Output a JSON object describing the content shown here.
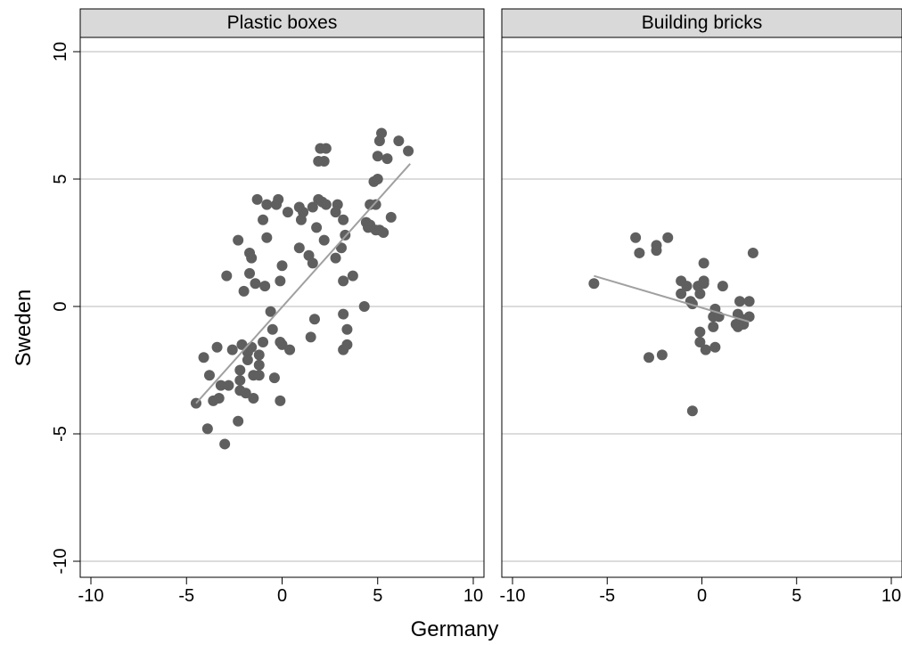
{
  "chart_data": {
    "type": "scatter",
    "xlabel": "Germany",
    "ylabel": "Sweden",
    "xlim": [
      -10,
      10
    ],
    "ylim": [
      -10,
      10
    ],
    "xticks": [
      -10,
      -5,
      0,
      5,
      10
    ],
    "yticks": [
      -10,
      -5,
      0,
      5,
      10
    ],
    "xtick_labels": [
      "-10",
      "-5",
      "0",
      "5",
      "10"
    ],
    "ytick_labels": [
      "-10",
      "-5",
      "0",
      "5",
      "10"
    ],
    "grid": "horizontal",
    "colors": {
      "points": "#5f5f5f",
      "fit_line": "#a0a0a0",
      "strip": "#d9d9d9",
      "grid": "#dcdcdc"
    },
    "panels": [
      {
        "title": "Plastic boxes",
        "fit_line": {
          "x": [
            -4.5,
            6.7
          ],
          "y": [
            -3.8,
            5.6
          ]
        },
        "points": [
          [
            -4.5,
            -3.8
          ],
          [
            -4.1,
            -2.0
          ],
          [
            -3.9,
            -4.8
          ],
          [
            -3.8,
            -2.7
          ],
          [
            -3.6,
            -3.7
          ],
          [
            -3.4,
            -1.6
          ],
          [
            -3.3,
            -3.6
          ],
          [
            -3.2,
            -3.1
          ],
          [
            -3.0,
            -5.4
          ],
          [
            -2.9,
            1.2
          ],
          [
            -2.8,
            -3.1
          ],
          [
            -2.6,
            -1.7
          ],
          [
            -2.3,
            -4.5
          ],
          [
            -2.3,
            2.6
          ],
          [
            -2.2,
            -3.3
          ],
          [
            -2.2,
            -2.9
          ],
          [
            -2.2,
            -2.5
          ],
          [
            -2.1,
            -1.5
          ],
          [
            -2.0,
            0.6
          ],
          [
            -1.9,
            -3.4
          ],
          [
            -1.8,
            -1.8
          ],
          [
            -1.8,
            -2.1
          ],
          [
            -1.7,
            2.1
          ],
          [
            -1.7,
            1.3
          ],
          [
            -1.6,
            1.9
          ],
          [
            -1.6,
            -1.6
          ],
          [
            -1.5,
            -3.6
          ],
          [
            -1.5,
            -2.7
          ],
          [
            -1.4,
            0.9
          ],
          [
            -1.3,
            4.2
          ],
          [
            -1.2,
            -2.7
          ],
          [
            -1.2,
            -2.3
          ],
          [
            -1.2,
            -1.9
          ],
          [
            -1.0,
            3.4
          ],
          [
            -1.0,
            -1.4
          ],
          [
            -0.9,
            0.8
          ],
          [
            -0.8,
            2.7
          ],
          [
            -0.8,
            4.0
          ],
          [
            -0.6,
            -0.2
          ],
          [
            -0.5,
            -0.9
          ],
          [
            -0.4,
            -2.8
          ],
          [
            -0.3,
            4.0
          ],
          [
            -0.2,
            4.2
          ],
          [
            -0.1,
            1.0
          ],
          [
            -0.1,
            -3.7
          ],
          [
            -0.1,
            -1.4
          ],
          [
            0.0,
            1.6
          ],
          [
            0.0,
            -1.5
          ],
          [
            0.3,
            3.7
          ],
          [
            0.4,
            -1.7
          ],
          [
            0.9,
            2.3
          ],
          [
            0.9,
            3.9
          ],
          [
            1.0,
            3.4
          ],
          [
            1.1,
            3.7
          ],
          [
            1.4,
            2.0
          ],
          [
            1.5,
            -1.2
          ],
          [
            1.6,
            3.9
          ],
          [
            1.6,
            1.7
          ],
          [
            1.7,
            -0.5
          ],
          [
            1.8,
            3.1
          ],
          [
            1.9,
            4.2
          ],
          [
            1.9,
            5.7
          ],
          [
            2.0,
            6.2
          ],
          [
            2.1,
            4.1
          ],
          [
            2.2,
            2.6
          ],
          [
            2.2,
            5.7
          ],
          [
            2.3,
            6.2
          ],
          [
            2.3,
            4.0
          ],
          [
            2.8,
            1.9
          ],
          [
            2.8,
            3.7
          ],
          [
            2.9,
            4.0
          ],
          [
            3.1,
            2.3
          ],
          [
            3.2,
            -0.3
          ],
          [
            3.2,
            1.0
          ],
          [
            3.2,
            3.4
          ],
          [
            3.2,
            -1.7
          ],
          [
            3.3,
            2.8
          ],
          [
            3.4,
            -0.9
          ],
          [
            3.4,
            -1.5
          ],
          [
            3.7,
            1.2
          ],
          [
            4.3,
            0.0
          ],
          [
            4.4,
            3.3
          ],
          [
            4.5,
            3.1
          ],
          [
            4.6,
            3.2
          ],
          [
            4.6,
            4.0
          ],
          [
            4.8,
            4.9
          ],
          [
            4.9,
            4.0
          ],
          [
            4.9,
            3.0
          ],
          [
            5.0,
            5.0
          ],
          [
            5.0,
            5.9
          ],
          [
            5.1,
            6.5
          ],
          [
            5.1,
            3.0
          ],
          [
            5.2,
            6.8
          ],
          [
            5.3,
            2.9
          ],
          [
            5.5,
            5.8
          ],
          [
            5.7,
            3.5
          ],
          [
            6.1,
            6.5
          ],
          [
            6.6,
            6.1
          ]
        ]
      },
      {
        "title": "Building bricks",
        "fit_line": {
          "x": [
            -5.7,
            2.5
          ],
          "y": [
            1.2,
            -0.6
          ]
        },
        "points": [
          [
            -5.7,
            0.9
          ],
          [
            -3.5,
            2.7
          ],
          [
            -3.3,
            2.1
          ],
          [
            -2.8,
            -2.0
          ],
          [
            -2.4,
            2.2
          ],
          [
            -2.4,
            2.4
          ],
          [
            -2.1,
            -1.9
          ],
          [
            -1.8,
            2.7
          ],
          [
            -1.1,
            1.0
          ],
          [
            -1.1,
            0.5
          ],
          [
            -0.8,
            0.8
          ],
          [
            -0.6,
            0.2
          ],
          [
            -0.5,
            -4.1
          ],
          [
            -0.5,
            0.1
          ],
          [
            -0.2,
            0.8
          ],
          [
            -0.1,
            -1.0
          ],
          [
            -0.1,
            -1.4
          ],
          [
            -0.1,
            0.5
          ],
          [
            0.1,
            0.9
          ],
          [
            0.1,
            1.0
          ],
          [
            0.1,
            1.7
          ],
          [
            0.2,
            -1.7
          ],
          [
            0.6,
            -0.4
          ],
          [
            0.6,
            -0.8
          ],
          [
            0.7,
            -0.1
          ],
          [
            0.7,
            -1.6
          ],
          [
            0.9,
            -0.4
          ],
          [
            1.1,
            0.8
          ],
          [
            1.8,
            -0.7
          ],
          [
            1.9,
            -0.3
          ],
          [
            1.9,
            -0.8
          ],
          [
            2.0,
            0.2
          ],
          [
            2.1,
            -0.5
          ],
          [
            2.2,
            -0.7
          ],
          [
            2.5,
            -0.4
          ],
          [
            2.5,
            0.2
          ],
          [
            2.7,
            2.1
          ]
        ]
      }
    ]
  }
}
